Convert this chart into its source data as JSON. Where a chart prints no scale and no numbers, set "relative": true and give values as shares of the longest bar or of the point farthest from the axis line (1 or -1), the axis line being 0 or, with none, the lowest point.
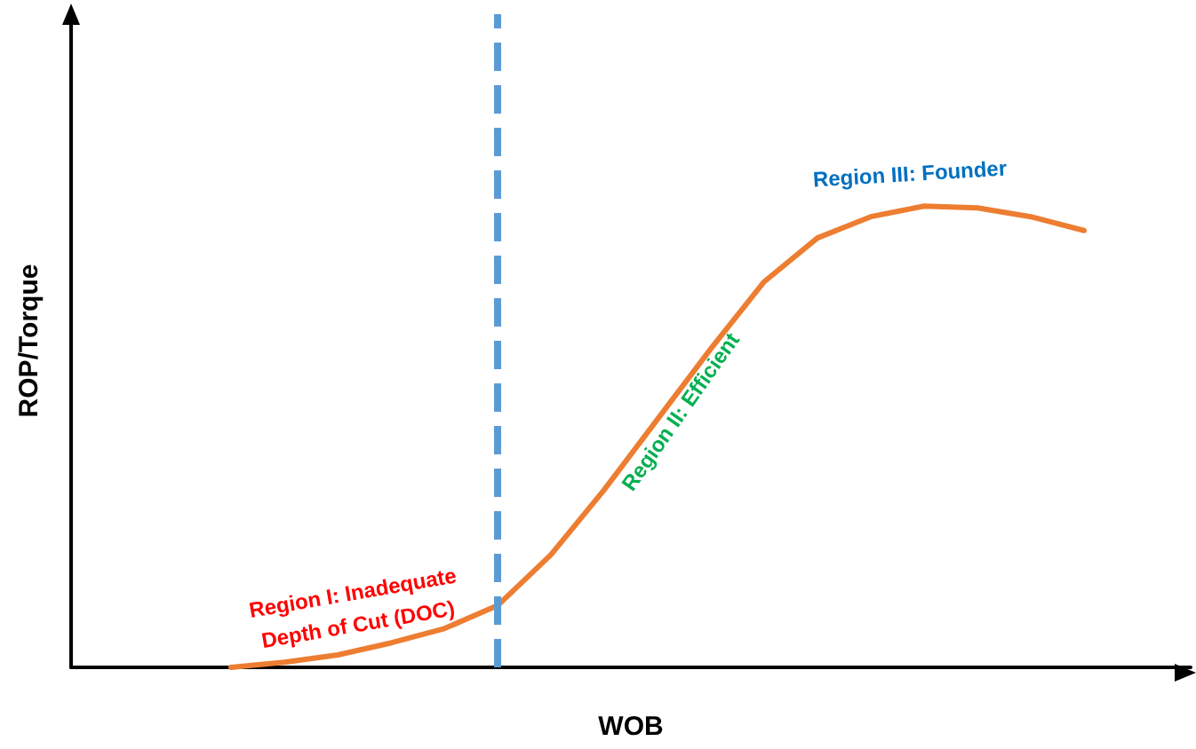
{
  "chart_data": {
    "type": "line",
    "relative": true,
    "xlabel": "WOB",
    "ylabel": "ROP/Torque",
    "categories": [
      null,
      null,
      null,
      null,
      null,
      null,
      null,
      null,
      null,
      null,
      null,
      null,
      null,
      null,
      null,
      null,
      null,
      null,
      null,
      null,
      null,
      null
    ],
    "series": [
      {
        "color": "#ed7d31",
        "values": [
          null,
          null,
          null,
          0,
          0.011,
          0.027,
          0.053,
          0.084,
          0.134,
          0.244,
          0.385,
          0.538,
          0.691,
          0.836,
          0.931,
          0.977,
          1,
          0.996,
          0.977,
          0.947,
          null,
          null
        ]
      }
    ],
    "annotations": [
      "Region I: Inadequate\nDepth of Cut (DOC)",
      "Region II: Efficient",
      "Region III: Founder"
    ],
    "grid": false,
    "marker": "none",
    "line_style": "solid"
  }
}
